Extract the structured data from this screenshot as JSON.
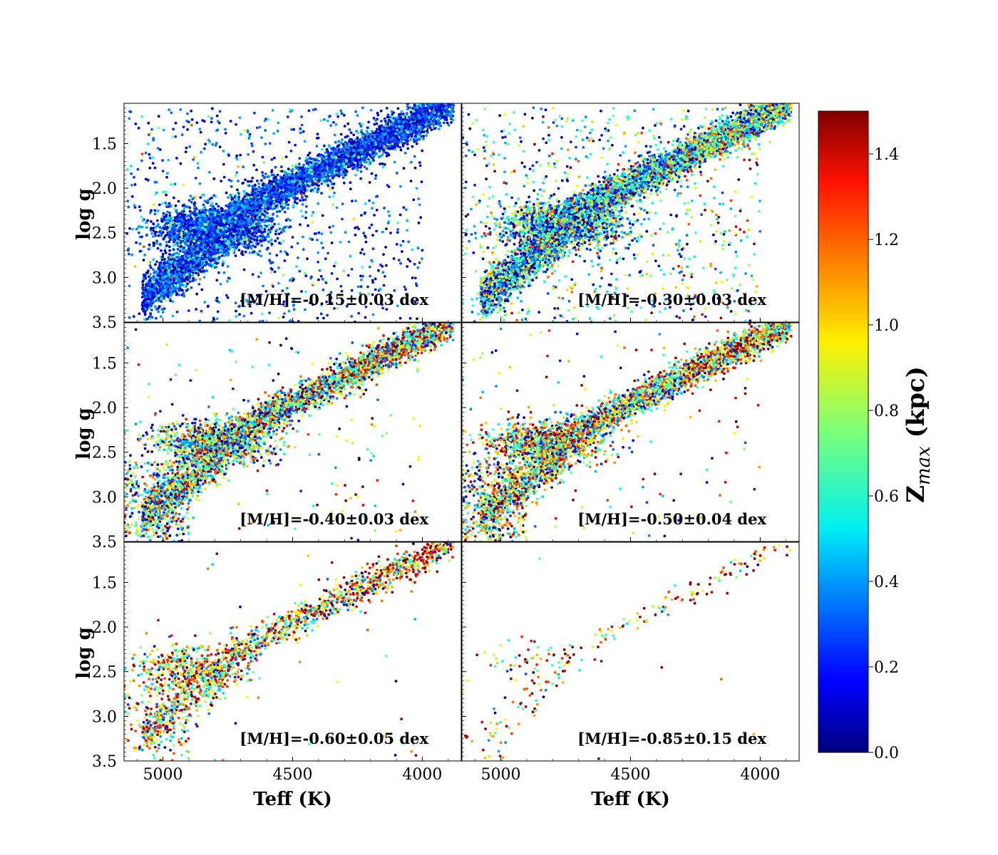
{
  "chart_data": {
    "type": "scatter",
    "layout": "3x2 panels with shared axes",
    "xlabel": "Teff (K)",
    "ylabel": "log g",
    "xlim": [
      5150,
      3850
    ],
    "ylim": [
      3.5,
      1.05
    ],
    "x_ticks": [
      5000,
      4500,
      4000
    ],
    "y_ticks": [
      1.5,
      2.0,
      2.5,
      3.0,
      3.5
    ],
    "x_tick_labels": [
      "5000",
      "4500",
      "4000"
    ],
    "y_tick_labels": [
      "1.5",
      "2.0",
      "2.5",
      "3.0",
      "3.5"
    ],
    "colorbar": {
      "label": "Z",
      "label_sub": "max",
      "label_unit": "(kpc)",
      "colormap": "jet",
      "range": [
        0.0,
        1.5
      ],
      "ticks": [
        0.0,
        0.2,
        0.4,
        0.6,
        0.8,
        1.0,
        1.2,
        1.4
      ],
      "tick_labels": [
        "0.0",
        "0.2",
        "0.4",
        "0.6",
        "0.8",
        "1.0",
        "1.2",
        "1.4"
      ]
    },
    "panels": [
      {
        "label": "[M/H]=-0.15±0.03 dex",
        "approx_count": 9000,
        "zmax_mean": 0.35,
        "zmax_spread": 0.3,
        "red_clump": {
          "teff": 4800,
          "logg": 2.45
        }
      },
      {
        "label": "[M/H]=-0.30±0.03 dex",
        "approx_count": 8000,
        "zmax_mean": 0.55,
        "zmax_spread": 0.4,
        "red_clump": {
          "teff": 4760,
          "logg": 2.4
        }
      },
      {
        "label": "[M/H]=-0.40±0.03 dex",
        "approx_count": 5000,
        "zmax_mean": 0.7,
        "zmax_spread": 0.45,
        "red_clump": {
          "teff": 4800,
          "logg": 2.4
        }
      },
      {
        "label": "[M/H]=-0.50±0.04 dex",
        "approx_count": 4500,
        "zmax_mean": 0.8,
        "zmax_spread": 0.45,
        "red_clump": {
          "teff": 4830,
          "logg": 2.4
        }
      },
      {
        "label": "[M/H]=-0.60±0.05 dex",
        "approx_count": 2000,
        "zmax_mean": 0.9,
        "zmax_spread": 0.45,
        "red_clump": {
          "teff": 4880,
          "logg": 2.45
        }
      },
      {
        "label": "[M/H]=-0.85±0.15 dex",
        "approx_count": 250,
        "zmax_mean": 1.0,
        "zmax_spread": 0.45,
        "red_clump": {
          "teff": 4900,
          "logg": 2.4
        }
      }
    ]
  }
}
